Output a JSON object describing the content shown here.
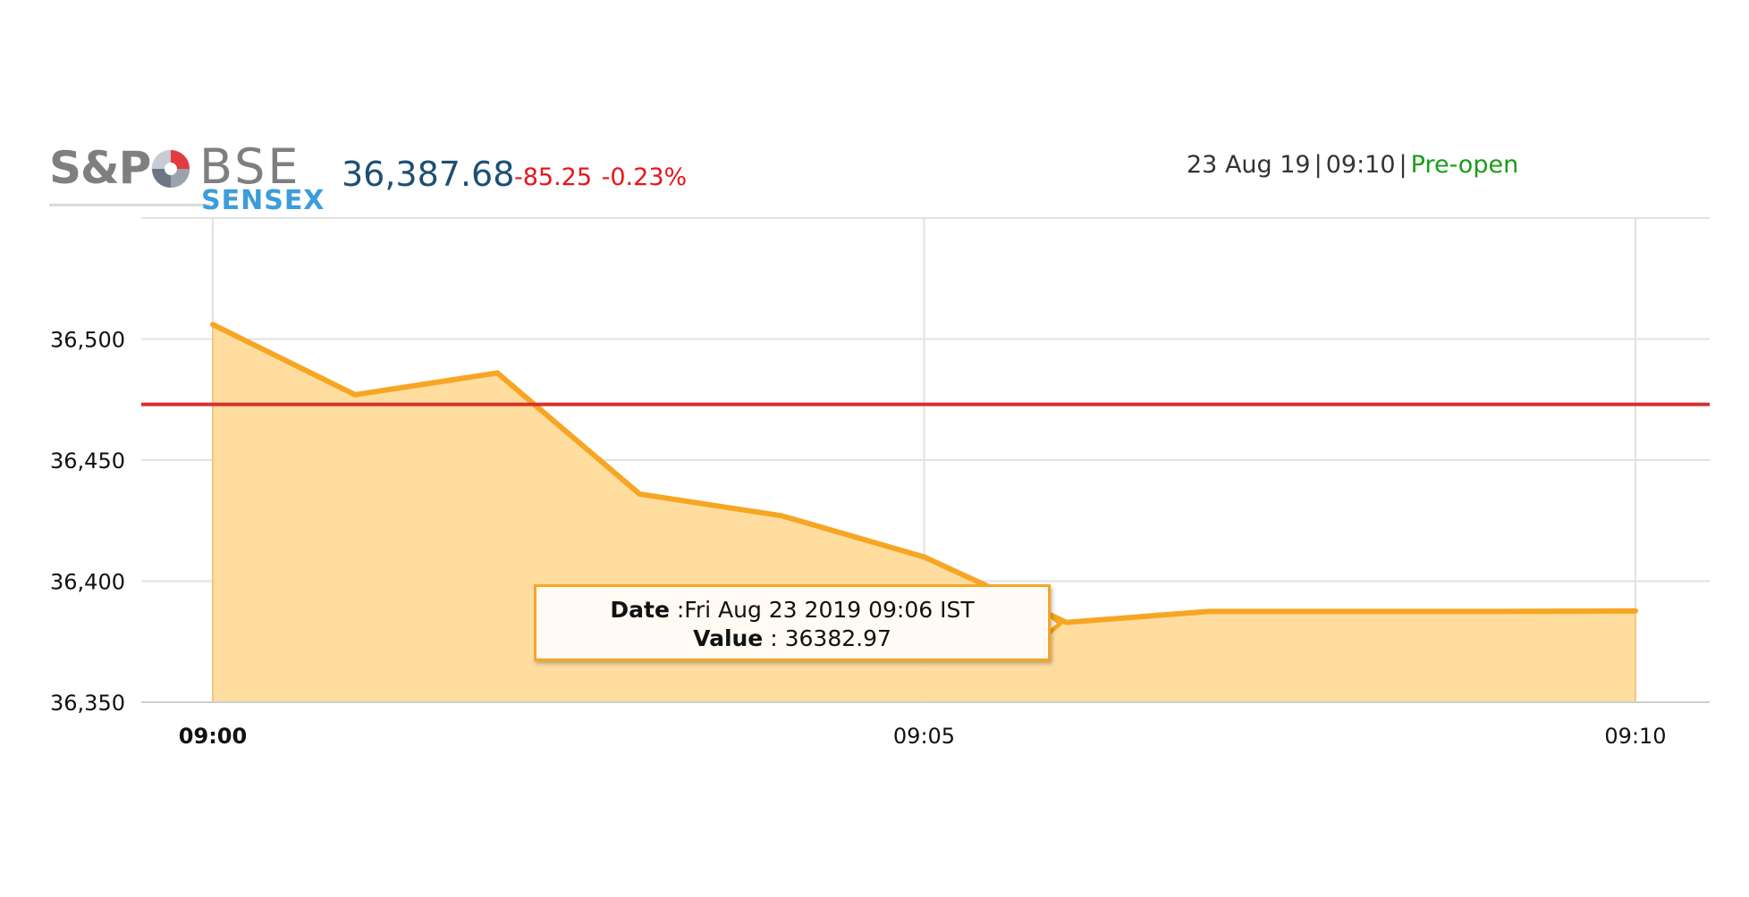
{
  "header": {
    "logo": {
      "brand": "S&P",
      "exchange": "BSE",
      "index_name": "SENSEX"
    },
    "index_value": "36,387.68",
    "change_points": "-85.25",
    "change_percent": "-0.23%",
    "date": "23 Aug 19",
    "time": "09:10",
    "separator": "|",
    "session_status": "Pre-open"
  },
  "colors": {
    "value_text": "#1d4f73",
    "change_negative": "#e8141b",
    "status_green": "#1a9c18",
    "series_line": "#f6a623",
    "series_fill": "#ffdb9a",
    "reference_line": "#d7302c",
    "grid": "#e2e2e2"
  },
  "tooltip": {
    "date_label": "Date",
    "date_value": "Fri Aug 23 2019 09:06 IST",
    "value_label": "Value",
    "value_value": "36382.97"
  },
  "chart_data": {
    "type": "area",
    "x": [
      "09:00",
      "09:01",
      "09:02",
      "09:03",
      "09:04",
      "09:05",
      "09:06",
      "09:07",
      "09:08",
      "09:09",
      "09:10"
    ],
    "series": [
      {
        "values": [
          36506,
          36477,
          36486,
          36436,
          36427,
          36410,
          36382.97,
          36387.5,
          36387.5,
          36387.5,
          36387.68
        ]
      }
    ],
    "reference_line": 36473,
    "ylim": [
      36350,
      36550
    ],
    "yticks": [
      36350,
      36400,
      36450,
      36500
    ],
    "ytick_labels": [
      "36,350",
      "36,400",
      "36,450",
      "36,500"
    ],
    "xticks": [
      "09:00",
      "09:05",
      "09:10"
    ],
    "xlabel": "",
    "ylabel": "",
    "grid": true,
    "legend": "none"
  }
}
